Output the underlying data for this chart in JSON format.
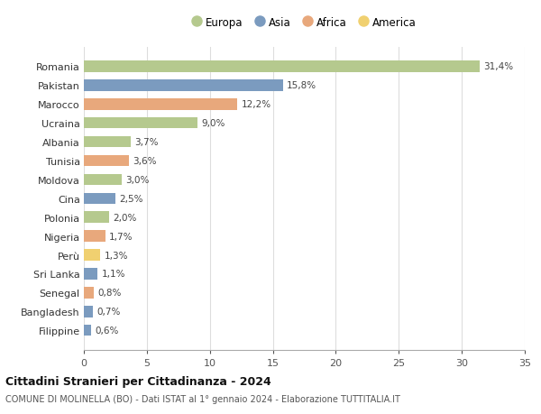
{
  "countries": [
    "Romania",
    "Pakistan",
    "Marocco",
    "Ucraina",
    "Albania",
    "Tunisia",
    "Moldova",
    "Cina",
    "Polonia",
    "Nigeria",
    "Perù",
    "Sri Lanka",
    "Senegal",
    "Bangladesh",
    "Filippine"
  ],
  "values": [
    31.4,
    15.8,
    12.2,
    9.0,
    3.7,
    3.6,
    3.0,
    2.5,
    2.0,
    1.7,
    1.3,
    1.1,
    0.8,
    0.7,
    0.6
  ],
  "labels": [
    "31,4%",
    "15,8%",
    "12,2%",
    "9,0%",
    "3,7%",
    "3,6%",
    "3,0%",
    "2,5%",
    "2,0%",
    "1,7%",
    "1,3%",
    "1,1%",
    "0,8%",
    "0,7%",
    "0,6%"
  ],
  "continents": [
    "Europa",
    "Asia",
    "Africa",
    "Europa",
    "Europa",
    "Africa",
    "Europa",
    "Asia",
    "Europa",
    "Africa",
    "America",
    "Asia",
    "Africa",
    "Asia",
    "Asia"
  ],
  "continent_colors": {
    "Europa": "#b5c98e",
    "Asia": "#7b9bbf",
    "Africa": "#e8a87c",
    "America": "#f0d070"
  },
  "legend_order": [
    "Europa",
    "Asia",
    "Africa",
    "America"
  ],
  "title": "Cittadini Stranieri per Cittadinanza - 2024",
  "subtitle": "COMUNE DI MOLINELLA (BO) - Dati ISTAT al 1° gennaio 2024 - Elaborazione TUTTITALIA.IT",
  "xlim": [
    0,
    35
  ],
  "xticks": [
    0,
    5,
    10,
    15,
    20,
    25,
    30,
    35
  ],
  "background_color": "#ffffff",
  "grid_color": "#dddddd",
  "bar_height": 0.6
}
